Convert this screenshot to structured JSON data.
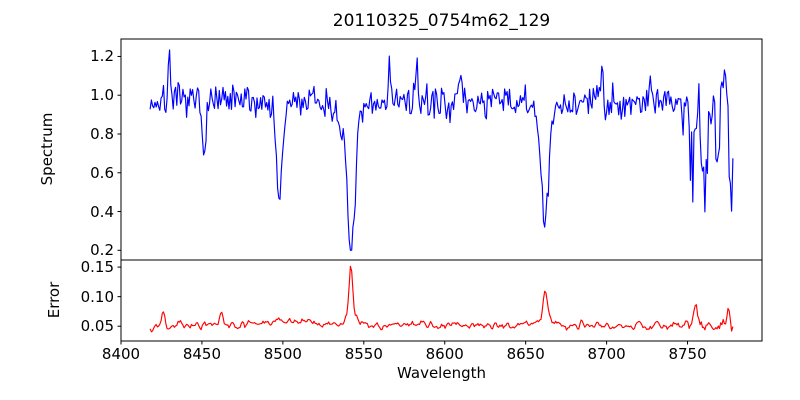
{
  "figure": {
    "background": "#ffffff",
    "axis_color": "#000000"
  },
  "chart_data": {
    "type": "line",
    "title": "20110325_0754m62_129",
    "xlabel": "Wavelength",
    "xlim": [
      8400,
      8796
    ],
    "x_ticks": [
      8400,
      8450,
      8500,
      8550,
      8600,
      8650,
      8700,
      8750
    ],
    "x_tick_labels": [
      "8400",
      "8450",
      "8500",
      "8550",
      "8600",
      "8650",
      "8700",
      "8750"
    ],
    "x_data_start": 8418,
    "x_data_end": 8778,
    "x_step": 0.75,
    "grid": false,
    "legend": "none",
    "subplots": [
      {
        "name": "spectrum",
        "ylabel": "Spectrum",
        "line_color": "#0000ff",
        "ylim": [
          0.15,
          1.29
        ],
        "y_ticks": [
          0.2,
          0.4,
          0.6,
          0.8,
          1.0,
          1.2
        ],
        "y_tick_labels": [
          "0.2",
          "0.4",
          "0.6",
          "0.8",
          "1.0",
          "1.2"
        ],
        "baseline": 0.965,
        "noise_sigma": 0.042,
        "noise_smooth": 1,
        "seed": 7,
        "edge_noise": {
          "start": 8746,
          "factor": 2.6
        },
        "gaussian_features": [
          {
            "center": 8430,
            "amp": 0.25,
            "sigma": 0.8
          },
          {
            "center": 8451,
            "amp": -0.22,
            "sigma": 1.2
          },
          {
            "center": 8498,
            "amp": -0.5,
            "sigma": 1.9
          },
          {
            "center": 8542,
            "amp": -0.64,
            "sigma": 2.4
          },
          {
            "center": 8542,
            "amp": -0.12,
            "sigma": 7
          },
          {
            "center": 8566,
            "amp": 0.18,
            "sigma": 0.9
          },
          {
            "center": 8583,
            "amp": 0.14,
            "sigma": 0.9
          },
          {
            "center": 8610,
            "amp": 0.12,
            "sigma": 0.9
          },
          {
            "center": 8662,
            "amp": -0.55,
            "sigma": 2.1
          },
          {
            "center": 8662,
            "amp": -0.09,
            "sigma": 6
          },
          {
            "center": 8697,
            "amp": 0.18,
            "sigma": 0.9
          },
          {
            "center": 8727,
            "amp": 0.14,
            "sigma": 0.9
          },
          {
            "center": 8753,
            "amp": -0.33,
            "sigma": 1.5
          },
          {
            "center": 8760,
            "amp": -0.38,
            "sigma": 1.5
          },
          {
            "center": 8768,
            "amp": -0.25,
            "sigma": 1.3
          },
          {
            "center": 8773.5,
            "amp": 0.27,
            "sigma": 0.9
          },
          {
            "center": 8776.5,
            "amp": -0.45,
            "sigma": 1.1
          }
        ]
      },
      {
        "name": "error",
        "ylabel": "Error",
        "line_color": "#ff0000",
        "ylim": [
          0.025,
          0.162
        ],
        "y_ticks": [
          0.05,
          0.1,
          0.15
        ],
        "y_tick_labels": [
          "0.05",
          "0.10",
          "0.15"
        ],
        "baseline": 0.0515,
        "noise_sigma": 0.0035,
        "noise_smooth": 3,
        "seed": 13,
        "edge_noise": {
          "start": 8740,
          "factor": 1.6
        },
        "gaussian_features": [
          {
            "center": 8426,
            "amp": 0.028,
            "sigma": 1.1
          },
          {
            "center": 8462,
            "amp": 0.019,
            "sigma": 1.1
          },
          {
            "center": 8502,
            "amp": 0.008,
            "sigma": 14
          },
          {
            "center": 8542,
            "amp": 0.088,
            "sigma": 1.1
          },
          {
            "center": 8542,
            "amp": 0.016,
            "sigma": 4
          },
          {
            "center": 8662,
            "amp": 0.05,
            "sigma": 1.4
          },
          {
            "center": 8662,
            "amp": 0.012,
            "sigma": 4
          },
          {
            "center": 8755,
            "amp": 0.03,
            "sigma": 1.2
          },
          {
            "center": 8775,
            "amp": 0.031,
            "sigma": 0.9
          },
          {
            "center": 8777.5,
            "amp": -0.014,
            "sigma": 0.8
          }
        ]
      }
    ]
  }
}
